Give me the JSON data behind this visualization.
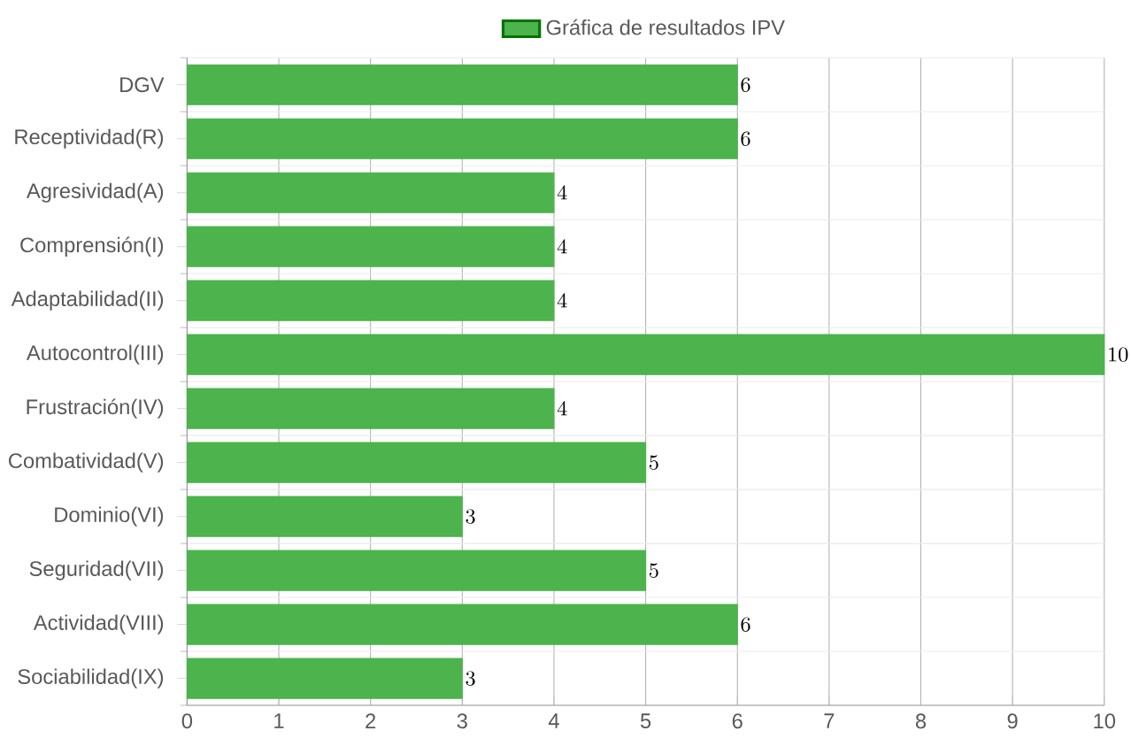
{
  "chart_data": {
    "type": "bar",
    "orientation": "horizontal",
    "categories": [
      "DGV",
      "Receptividad(R)",
      "Agresividad(A)",
      "Comprensión(I)",
      "Adaptabilidad(II)",
      "Autocontrol(III)",
      "Frustración(IV)",
      "Combatividad(V)",
      "Dominio(VI)",
      "Seguridad(VII)",
      "Actividad(VIII)",
      "Sociabilidad(IX)"
    ],
    "series": [
      {
        "name": "Gráfica de resultados IPV",
        "color": "#4db34d",
        "values": [
          6,
          6,
          4,
          4,
          4,
          10,
          4,
          5,
          3,
          5,
          6,
          3
        ]
      }
    ],
    "xlim": [
      0,
      10
    ],
    "xticks": [
      0,
      1,
      2,
      3,
      4,
      5,
      6,
      7,
      8,
      9,
      10
    ],
    "grid": true,
    "legend": "top",
    "data_labels": true
  }
}
